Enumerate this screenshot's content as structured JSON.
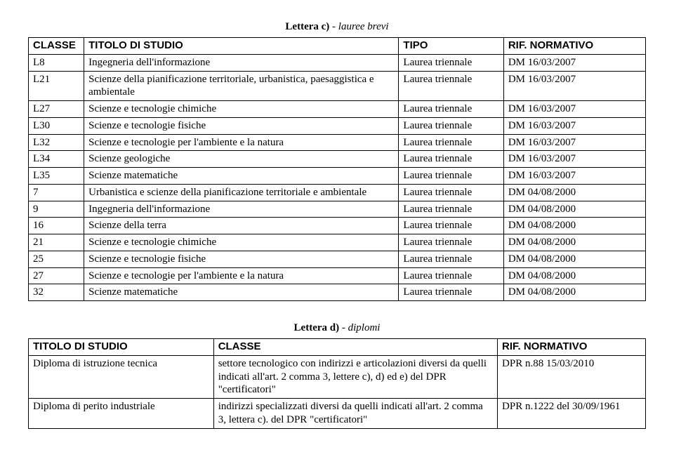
{
  "section1": {
    "label_prefix": "Lettera c)",
    "label_suffix": " - lauree brevi",
    "headers": [
      "CLASSE",
      "TITOLO DI STUDIO",
      "TIPO",
      "RIF. NORMATIVO"
    ],
    "rows": [
      [
        "L8",
        "Ingegneria dell'informazione",
        "Laurea triennale",
        "DM 16/03/2007"
      ],
      [
        "L21",
        "Scienze della pianificazione territoriale, urbanistica, paesaggistica e ambientale",
        "Laurea triennale",
        "DM 16/03/2007"
      ],
      [
        "L27",
        "Scienze e tecnologie chimiche",
        "Laurea triennale",
        "DM 16/03/2007"
      ],
      [
        "L30",
        "Scienze e tecnologie fisiche",
        "Laurea triennale",
        "DM 16/03/2007"
      ],
      [
        "L32",
        "Scienze e tecnologie per l'ambiente e la natura",
        "Laurea triennale",
        "DM 16/03/2007"
      ],
      [
        "L34",
        "Scienze geologiche",
        "Laurea triennale",
        "DM 16/03/2007"
      ],
      [
        "L35",
        "Scienze matematiche",
        "Laurea triennale",
        "DM 16/03/2007"
      ],
      [
        "7",
        "Urbanistica e scienze della pianificazione territoriale e ambientale",
        "Laurea triennale",
        "DM 04/08/2000"
      ],
      [
        "9",
        "Ingegneria dell'informazione",
        "Laurea triennale",
        "DM 04/08/2000"
      ],
      [
        "16",
        "Scienze della terra",
        "Laurea triennale",
        "DM 04/08/2000"
      ],
      [
        "21",
        "Scienze e tecnologie chimiche",
        "Laurea triennale",
        "DM 04/08/2000"
      ],
      [
        "25",
        "Scienze e tecnologie fisiche",
        "Laurea triennale",
        "DM 04/08/2000"
      ],
      [
        "27",
        "Scienze e tecnologie per l'ambiente e la natura",
        "Laurea triennale",
        "DM 04/08/2000"
      ],
      [
        "32",
        "Scienze matematiche",
        "Laurea triennale",
        "DM 04/08/2000"
      ]
    ]
  },
  "section2": {
    "label_prefix": "Lettera d)",
    "label_suffix": " - diplomi",
    "headers": [
      "TITOLO DI STUDIO",
      "CLASSE",
      "RIF. NORMATIVO"
    ],
    "rows": [
      [
        "Diploma di istruzione tecnica",
        "settore tecnologico  con indirizzi e articolazioni diversi da quelli indicati all'art. 2 comma 3, lettere c), d) ed e) del DPR \"certificatori\"",
        "DPR n.88 15/03/2010"
      ],
      [
        "Diploma di perito industriale",
        "indirizzi specializzati diversi da quelli indicati all'art. 2 comma 3, lettera c). del DPR \"certificatori\"",
        "DPR n.1222 del 30/09/1961"
      ]
    ]
  }
}
